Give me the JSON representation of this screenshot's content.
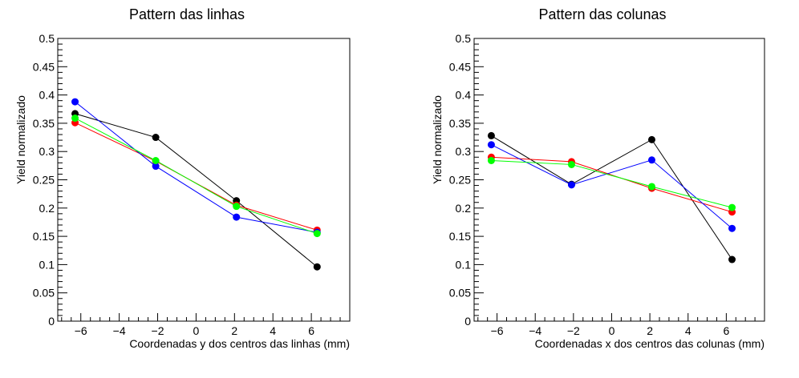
{
  "chart_data": [
    {
      "type": "line",
      "title": "Pattern das linhas",
      "xlabel": "Coordenadas y dos centros das linhas (mm)",
      "ylabel": "Yield normalizado",
      "xlim": [
        -7.2,
        8
      ],
      "ylim": [
        0,
        0.5
      ],
      "xticks": [
        -6,
        -4,
        -2,
        0,
        2,
        4,
        6
      ],
      "xtick_labels": [
        "−6",
        "−4",
        "−2",
        "0",
        "2",
        "4",
        "6"
      ],
      "yticks": [
        0,
        0.05,
        0.1,
        0.15,
        0.2,
        0.25,
        0.3,
        0.35,
        0.4,
        0.45,
        0.5
      ],
      "ytick_labels": [
        "0",
        "0.05",
        "0.1",
        "0.15",
        "0.2",
        "0.25",
        "0.3",
        "0.35",
        "0.4",
        "0.45",
        "0.5"
      ],
      "x": [
        -6.3,
        -2.1,
        2.1,
        6.3
      ],
      "series": [
        {
          "color": "#000000",
          "values": [
            0.367,
            0.325,
            0.213,
            0.096
          ]
        },
        {
          "color": "#ff0000",
          "values": [
            0.351,
            0.283,
            0.205,
            0.161
          ]
        },
        {
          "color": "#0000ff",
          "values": [
            0.388,
            0.274,
            0.184,
            0.157
          ]
        },
        {
          "color": "#00ff00",
          "values": [
            0.359,
            0.284,
            0.203,
            0.155
          ]
        }
      ]
    },
    {
      "type": "line",
      "title": "Pattern das colunas",
      "xlabel": "Coordenadas x dos centros das colunas (mm)",
      "ylabel": "Yield normalizado",
      "xlim": [
        -7.2,
        8
      ],
      "ylim": [
        0,
        0.5
      ],
      "xticks": [
        -6,
        -4,
        -2,
        0,
        2,
        4,
        6
      ],
      "xtick_labels": [
        "−6",
        "−4",
        "−2",
        "0",
        "2",
        "4",
        "6"
      ],
      "yticks": [
        0,
        0.05,
        0.1,
        0.15,
        0.2,
        0.25,
        0.3,
        0.35,
        0.4,
        0.45,
        0.5
      ],
      "ytick_labels": [
        "0",
        "0.05",
        "0.1",
        "0.15",
        "0.2",
        "0.25",
        "0.3",
        "0.35",
        "0.4",
        "0.45",
        "0.5"
      ],
      "x": [
        -6.3,
        -2.1,
        2.1,
        6.3
      ],
      "series": [
        {
          "color": "#000000",
          "values": [
            0.328,
            0.242,
            0.321,
            0.109
          ]
        },
        {
          "color": "#ff0000",
          "values": [
            0.29,
            0.282,
            0.235,
            0.193
          ]
        },
        {
          "color": "#0000ff",
          "values": [
            0.312,
            0.241,
            0.285,
            0.164
          ]
        },
        {
          "color": "#00ff00",
          "values": [
            0.284,
            0.277,
            0.238,
            0.201
          ]
        }
      ]
    }
  ]
}
